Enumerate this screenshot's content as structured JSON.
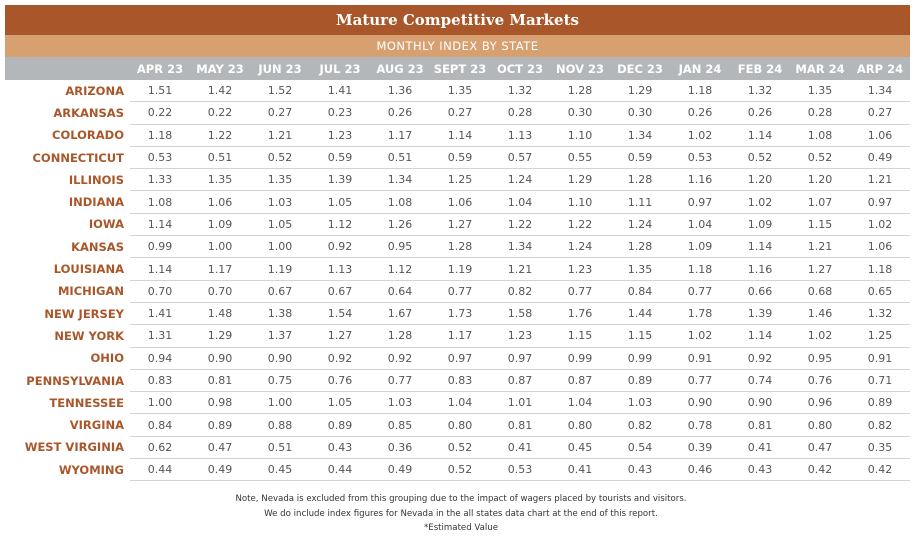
{
  "title": "Mature Competitive Markets",
  "subtitle": "MONTHLY INDEX BY STATE",
  "notes": [
    "Note, Nevada is excluded from this grouping due to the impact of wagers placed by tourists and visitors.",
    "We do include index figures for Nevada in the all states data chart at the end of this report.",
    "*Estimated Value"
  ],
  "colors": {
    "title_bg": "#a9572a",
    "subtitle_bg": "#d7a071",
    "header_bg": "#b4b7ba",
    "state_text": "#a9572a"
  },
  "chart_data": {
    "type": "table",
    "title": "Mature Competitive Markets",
    "subtitle": "MONTHLY INDEX BY STATE",
    "columns": [
      "APR 23",
      "MAY 23",
      "JUN 23",
      "JUL 23",
      "AUG 23",
      "SEPT 23",
      "OCT 23",
      "NOV 23",
      "DEC 23",
      "JAN 24",
      "FEB 24",
      "MAR 24",
      "ARP 24"
    ],
    "rows": [
      {
        "state": "ARIZONA",
        "values": [
          "1.51",
          "1.42",
          "1.52",
          "1.41",
          "1.36",
          "1.35",
          "1.32",
          "1.28",
          "1.29",
          "1.18",
          "1.32",
          "1.35",
          "1.34"
        ]
      },
      {
        "state": "ARKANSAS",
        "values": [
          "0.22",
          "0.22",
          "0.27",
          "0.23",
          "0.26",
          "0.27",
          "0.28",
          "0.30",
          "0.30",
          "0.26",
          "0.26",
          "0.28",
          "0.27"
        ]
      },
      {
        "state": "COLORADO",
        "values": [
          "1.18",
          "1.22",
          "1.21",
          "1.23",
          "1.17",
          "1.14",
          "1.13",
          "1.10",
          "1.34",
          "1.02",
          "1.14",
          "1.08",
          "1.06"
        ]
      },
      {
        "state": "CONNECTICUT",
        "values": [
          "0.53",
          "0.51",
          "0.52",
          "0.59",
          "0.51",
          "0.59",
          "0.57",
          "0.55",
          "0.59",
          "0.53",
          "0.52",
          "0.52",
          "0.49"
        ]
      },
      {
        "state": "ILLINOIS",
        "values": [
          "1.33",
          "1.35",
          "1.35",
          "1.39",
          "1.34",
          "1.25",
          "1.24",
          "1.29",
          "1.28",
          "1.16",
          "1.20",
          "1.20",
          "1.21"
        ]
      },
      {
        "state": "INDIANA",
        "values": [
          "1.08",
          "1.06",
          "1.03",
          "1.05",
          "1.08",
          "1.06",
          "1.04",
          "1.10",
          "1.11",
          "0.97",
          "1.02",
          "1.07",
          "0.97"
        ]
      },
      {
        "state": "IOWA",
        "values": [
          "1.14",
          "1.09",
          "1.05",
          "1.12",
          "1.26",
          "1.27",
          "1.22",
          "1.22",
          "1.24",
          "1.04",
          "1.09",
          "1.15",
          "1.02"
        ]
      },
      {
        "state": "KANSAS",
        "values": [
          "0.99",
          "1.00",
          "1.00",
          "0.92",
          "0.95",
          "1.28",
          "1.34",
          "1.24",
          "1.28",
          "1.09",
          "1.14",
          "1.21",
          "1.06"
        ]
      },
      {
        "state": "LOUISIANA",
        "values": [
          "1.14",
          "1.17",
          "1.19",
          "1.13",
          "1.12",
          "1.19",
          "1.21",
          "1.23",
          "1.35",
          "1.18",
          "1.16",
          "1.27",
          "1.18"
        ]
      },
      {
        "state": "MICHIGAN",
        "values": [
          "0.70",
          "0.70",
          "0.67",
          "0.67",
          "0.64",
          "0.77",
          "0.82",
          "0.77",
          "0.84",
          "0.77",
          "0.66",
          "0.68",
          "0.65"
        ]
      },
      {
        "state": "NEW JERSEY",
        "values": [
          "1.41",
          "1.48",
          "1.38",
          "1.54",
          "1.67",
          "1.73",
          "1.58",
          "1.76",
          "1.44",
          "1.78",
          "1.39",
          "1.46",
          "1.32"
        ]
      },
      {
        "state": "NEW YORK",
        "values": [
          "1.31",
          "1.29",
          "1.37",
          "1.27",
          "1.28",
          "1.17",
          "1.23",
          "1.15",
          "1.15",
          "1.02",
          "1.14",
          "1.02",
          "1.25"
        ]
      },
      {
        "state": "OHIO",
        "values": [
          "0.94",
          "0.90",
          "0.90",
          "0.92",
          "0.92",
          "0.97",
          "0.97",
          "0.99",
          "0.99",
          "0.91",
          "0.92",
          "0.95",
          "0.91"
        ]
      },
      {
        "state": "PENNSYLVANIA",
        "values": [
          "0.83",
          "0.81",
          "0.75",
          "0.76",
          "0.77",
          "0.83",
          "0.87",
          "0.87",
          "0.89",
          "0.77",
          "0.74",
          "0.76",
          "0.71"
        ]
      },
      {
        "state": "TENNESSEE",
        "values": [
          "1.00",
          "0.98",
          "1.00",
          "1.05",
          "1.03",
          "1.04",
          "1.01",
          "1.04",
          "1.03",
          "0.90",
          "0.90",
          "0.96",
          "0.89"
        ]
      },
      {
        "state": "VIRGINA",
        "values": [
          "0.84",
          "0.89",
          "0.88",
          "0.89",
          "0.85",
          "0.80",
          "0.81",
          "0.80",
          "0.82",
          "0.78",
          "0.81",
          "0.80",
          "0.82"
        ]
      },
      {
        "state": "WEST VIRGINIA",
        "values": [
          "0.62",
          "0.47",
          "0.51",
          "0.43",
          "0.36",
          "0.52",
          "0.41",
          "0.45",
          "0.54",
          "0.39",
          "0.41",
          "0.47",
          "0.35"
        ]
      },
      {
        "state": "WYOMING",
        "values": [
          "0.44",
          "0.49",
          "0.45",
          "0.44",
          "0.49",
          "0.52",
          "0.53",
          "0.41",
          "0.43",
          "0.46",
          "0.43",
          "0.42",
          "0.42"
        ]
      }
    ]
  }
}
